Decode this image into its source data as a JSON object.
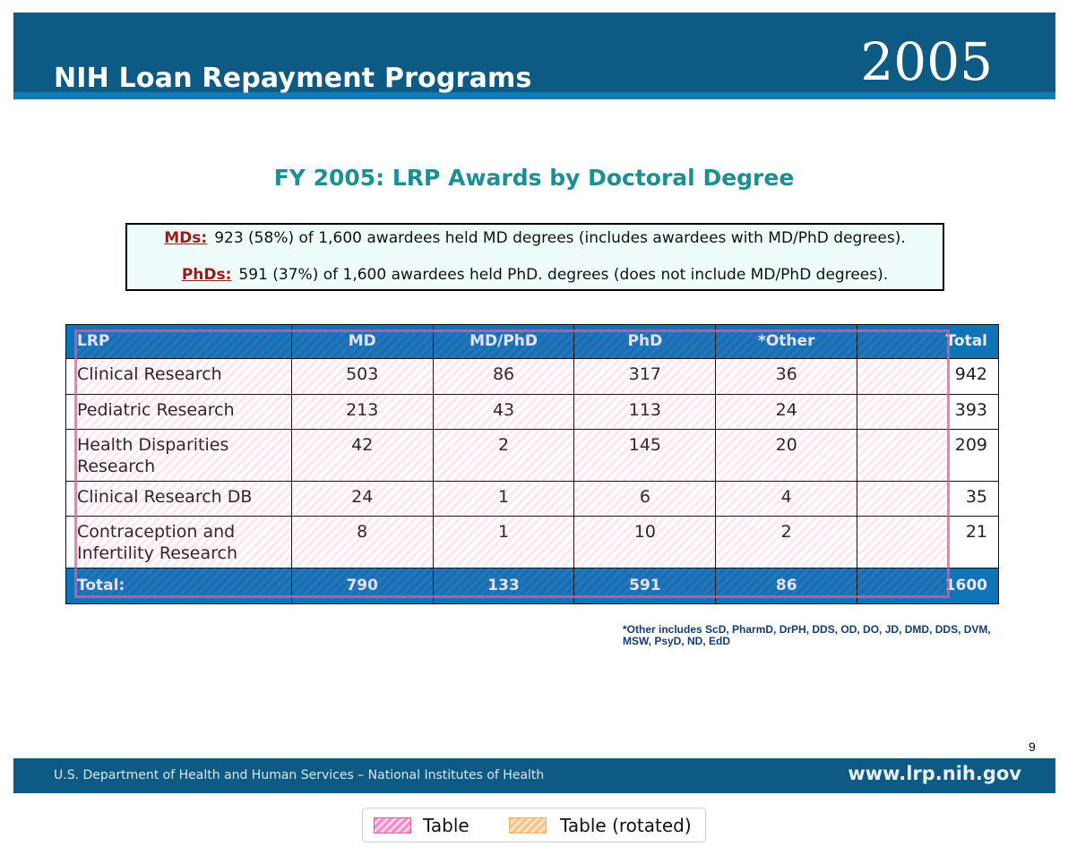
{
  "header": {
    "title": "NIH Loan Repayment Programs",
    "year": "2005"
  },
  "slide_title": "FY 2005:  LRP Awards by Doctoral Degree",
  "summary": {
    "md_key": "MDs:",
    "md_text": "923 (58%) of 1,600 awardees held MD degrees (includes awardees with MD/PhD degrees).",
    "phd_key": "PhDs:",
    "phd_text": "591 (37%) of 1,600 awardees held PhD. degrees (does not include MD/PhD degrees)."
  },
  "table": {
    "columns": [
      "LRP",
      "MD",
      "MD/PhD",
      "PhD",
      "*Other",
      "Total"
    ],
    "rows": [
      [
        "Clinical Research",
        "503",
        "86",
        "317",
        "36",
        "942"
      ],
      [
        "Pediatric Research",
        "213",
        "43",
        "113",
        "24",
        "393"
      ],
      [
        "Health Disparities Research",
        "42",
        "2",
        "145",
        "20",
        "209"
      ],
      [
        "Clinical Research DB",
        "24",
        "1",
        "6",
        "4",
        "35"
      ],
      [
        "Contraception and Infertility Research",
        "8",
        "1",
        "10",
        "2",
        "21"
      ]
    ],
    "total_row": [
      "Total:",
      "790",
      "133",
      "591",
      "86",
      "1600"
    ]
  },
  "footnote": "*Other includes ScD, PharmD, DrPH, DDS, OD, DO, JD, DMD, DDS, DVM, MSW, PsyD, ND, EdD",
  "page_number": "9",
  "footer": {
    "left": "U.S. Department of Health and Human Services – National Institutes of Health",
    "right": "www.lrp.nih.gov"
  },
  "legend": {
    "items": [
      "Table",
      "Table (rotated)"
    ]
  },
  "colors": {
    "header_band": "#0d5a85",
    "title_teal": "#1a8f94",
    "table_header": "#0f74b7",
    "summary_key": "#9b1b1b",
    "annotation_pink": "#e25aa0",
    "annotation_orange": "#f0b060"
  }
}
